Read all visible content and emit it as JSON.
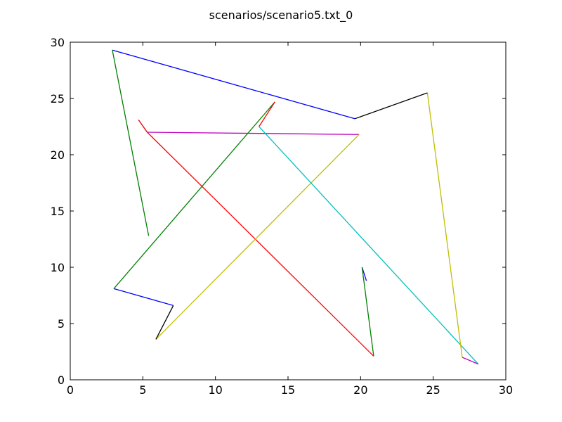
{
  "chart_data": {
    "type": "line",
    "title": "scenarios/scenario5.txt_0",
    "xlabel": "",
    "ylabel": "",
    "xlim": [
      0,
      30
    ],
    "ylim": [
      0,
      30
    ],
    "xticks": [
      0,
      5,
      10,
      15,
      20,
      25,
      30
    ],
    "yticks": [
      0,
      5,
      10,
      15,
      20,
      25,
      30
    ],
    "grid": false,
    "legend": "none",
    "segments": [
      {
        "color": "#0000ff",
        "points": [
          [
            20.4,
            8.8
          ],
          [
            20.1,
            10.0
          ]
        ]
      },
      {
        "color": "#008000",
        "points": [
          [
            20.1,
            10.0
          ],
          [
            20.9,
            2.1
          ]
        ]
      },
      {
        "color": "#ff0000",
        "points": [
          [
            20.9,
            2.1
          ],
          [
            5.3,
            22.0
          ]
        ]
      },
      {
        "color": "#00bfbf",
        "points": [
          [
            5.3,
            22.0
          ],
          [
            4.7,
            23.1
          ]
        ]
      },
      {
        "color": "#ff0000",
        "points": [
          [
            4.7,
            23.1
          ],
          [
            5.3,
            22.0
          ]
        ]
      },
      {
        "color": "#bf00bf",
        "points": [
          [
            5.3,
            22.0
          ],
          [
            19.9,
            21.8
          ]
        ]
      },
      {
        "color": "#bfbf00",
        "points": [
          [
            19.9,
            21.8
          ],
          [
            5.9,
            3.6
          ]
        ]
      },
      {
        "color": "#000000",
        "points": [
          [
            5.9,
            3.6
          ],
          [
            7.1,
            6.6
          ]
        ]
      },
      {
        "color": "#0000ff",
        "points": [
          [
            7.1,
            6.6
          ],
          [
            3.0,
            8.1
          ]
        ]
      },
      {
        "color": "#008000",
        "points": [
          [
            3.0,
            8.1
          ],
          [
            14.1,
            24.7
          ]
        ]
      },
      {
        "color": "#ff0000",
        "points": [
          [
            14.1,
            24.7
          ],
          [
            13.0,
            22.5
          ]
        ]
      },
      {
        "color": "#00bfbf",
        "points": [
          [
            13.0,
            22.5
          ],
          [
            28.1,
            1.4
          ]
        ]
      },
      {
        "color": "#bf00bf",
        "points": [
          [
            28.1,
            1.4
          ],
          [
            27.0,
            2.0
          ]
        ]
      },
      {
        "color": "#bfbf00",
        "points": [
          [
            27.0,
            2.0
          ],
          [
            24.6,
            25.5
          ]
        ]
      },
      {
        "color": "#000000",
        "points": [
          [
            24.6,
            25.5
          ],
          [
            19.6,
            23.2
          ]
        ]
      },
      {
        "color": "#0000ff",
        "points": [
          [
            19.6,
            23.2
          ],
          [
            2.9,
            29.3
          ]
        ]
      },
      {
        "color": "#008000",
        "points": [
          [
            2.9,
            29.3
          ],
          [
            5.4,
            12.8
          ]
        ]
      }
    ]
  }
}
